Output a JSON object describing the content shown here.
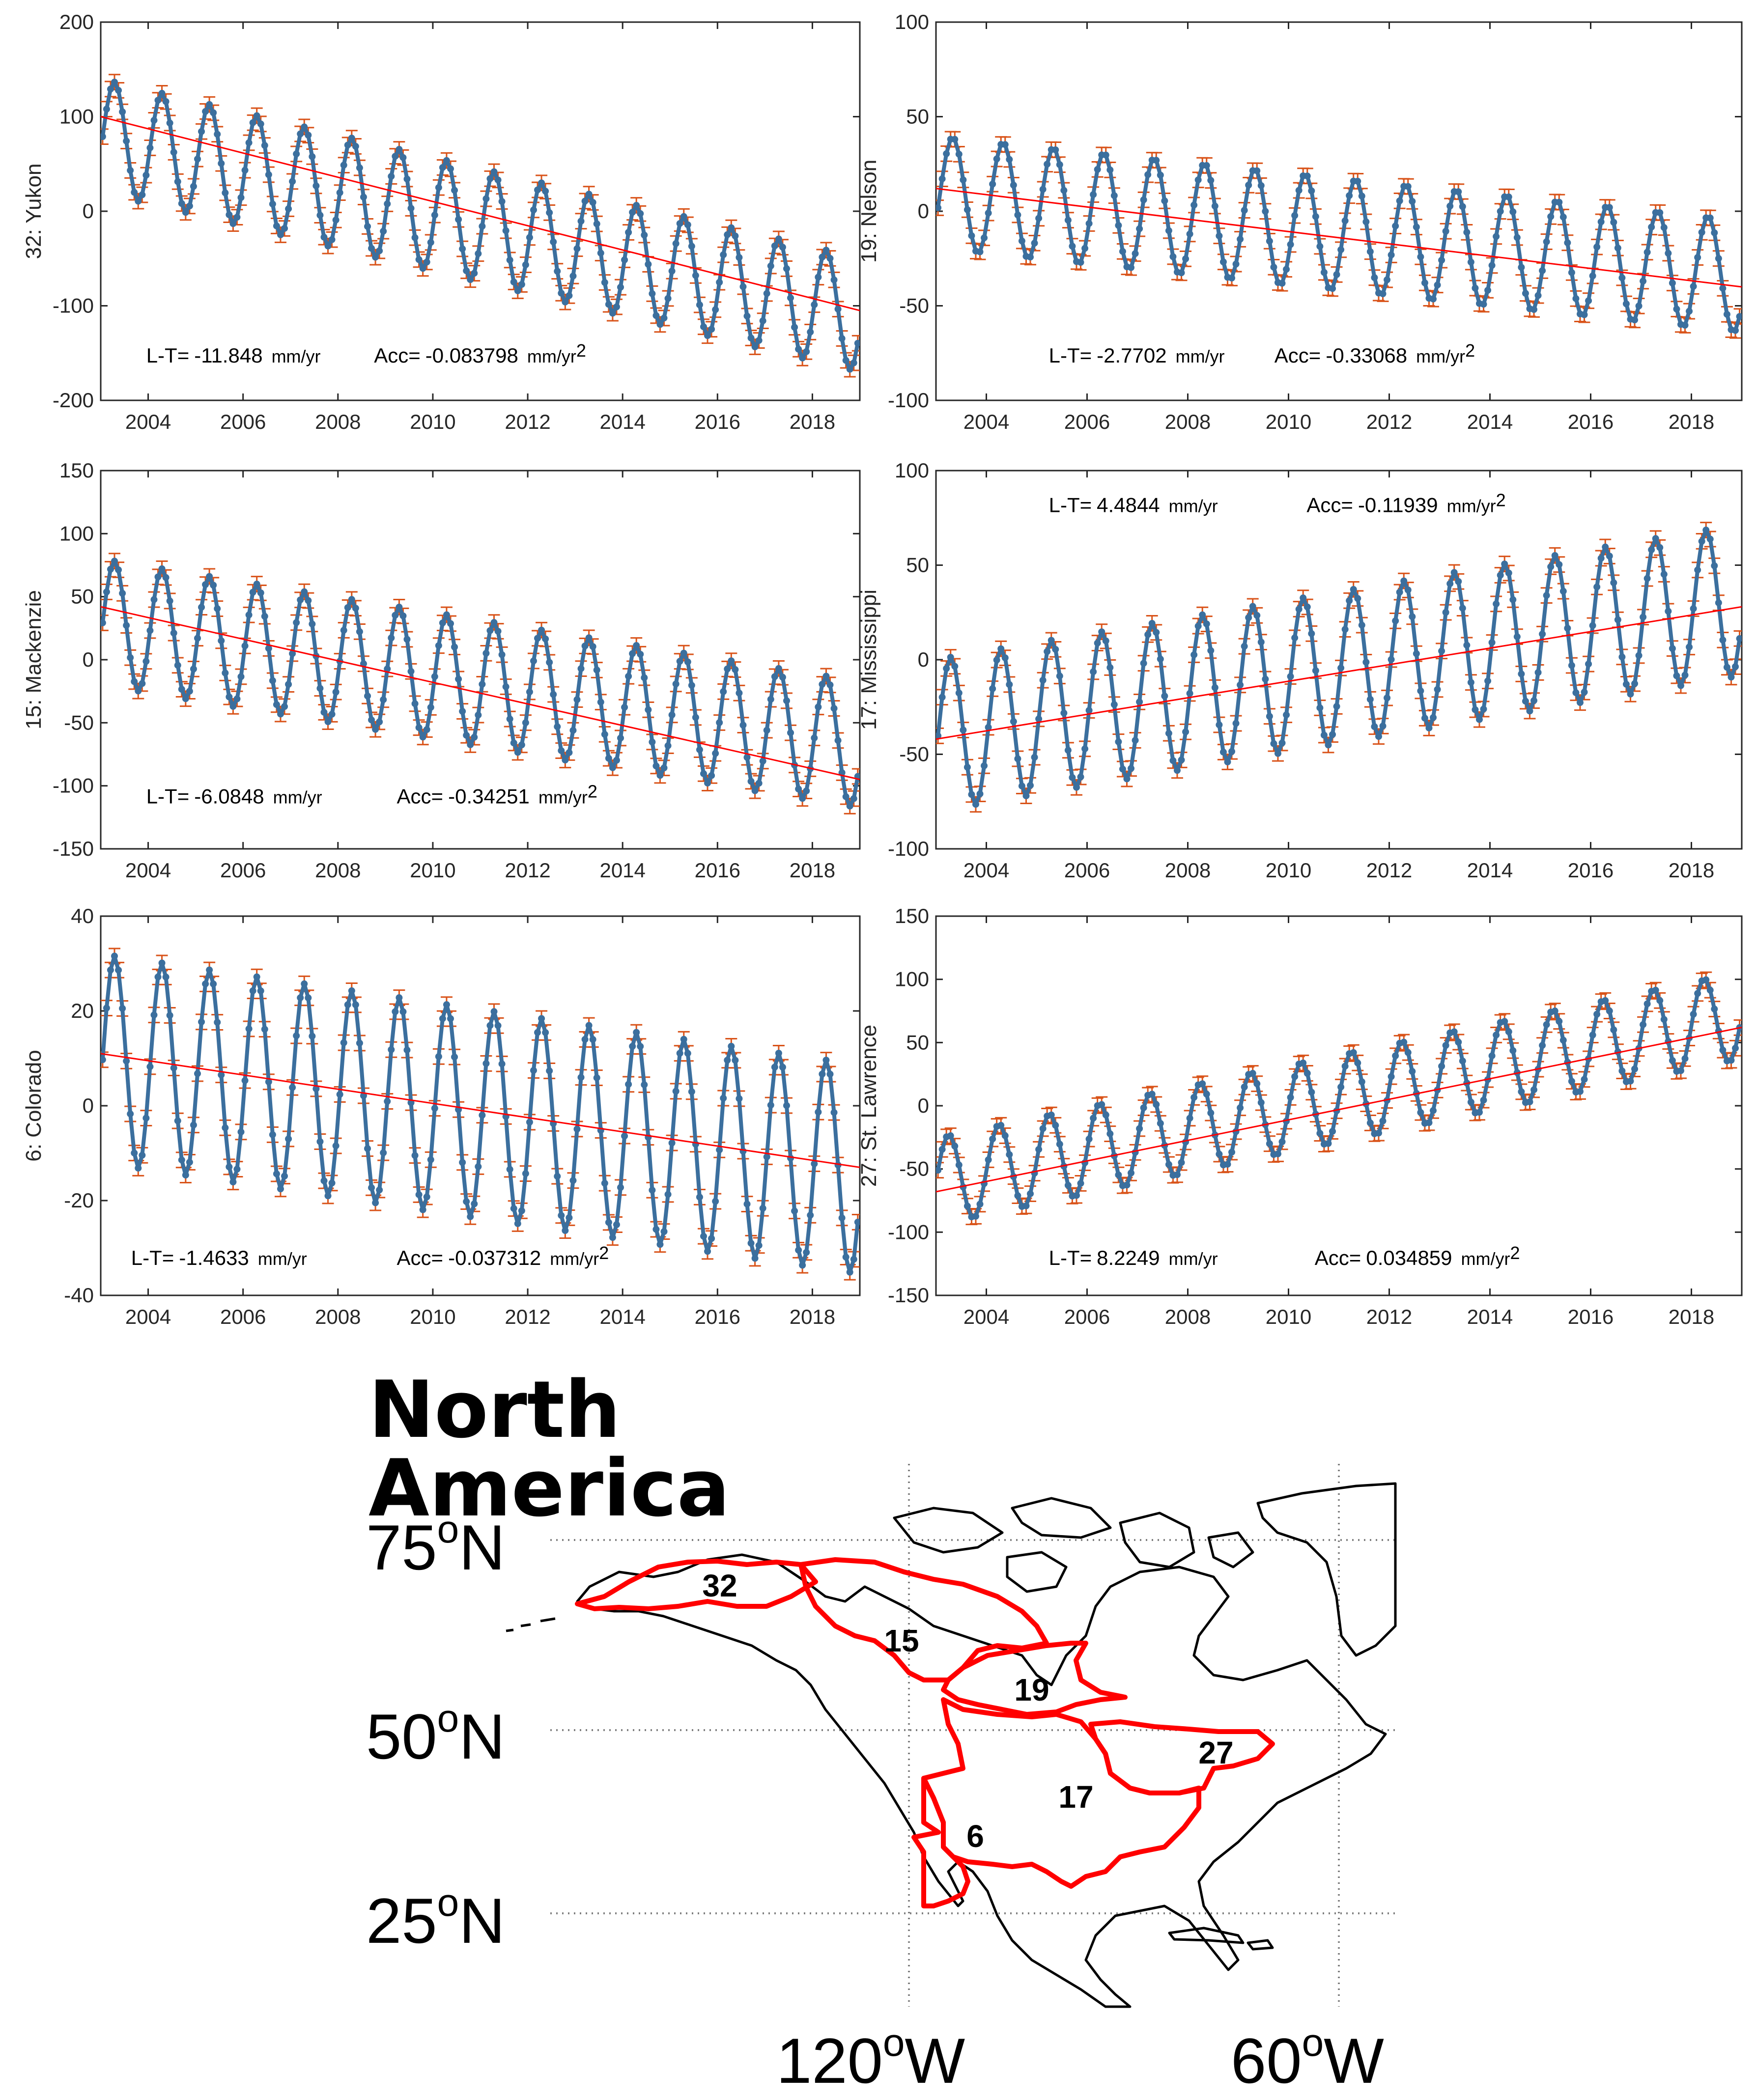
{
  "chart_data": [
    {
      "type": "line",
      "basin_id": "32",
      "ylabel": "32: Yukon",
      "ylim": [
        -200,
        200
      ],
      "yticks": [
        200,
        100,
        0,
        -100,
        -200
      ],
      "xlim": [
        2003,
        2019
      ],
      "xticks": [
        2004,
        2006,
        2008,
        2010,
        2012,
        2014,
        2016,
        2018
      ],
      "seasonal": {
        "mean": 80,
        "mean_slope": -11.848,
        "amplitude": 60,
        "peak_month": 3.5
      },
      "trend": {
        "start": [
          2003,
          100
        ],
        "end": [
          2019,
          -105
        ]
      },
      "lt_label": "L-T=",
      "lt_value": "-11.848",
      "lt_unit": "mm/yr",
      "acc_label": "Acc=",
      "acc_value": "-0.083798",
      "acc_unit": "mm/yr",
      "acc_exp": "2"
    },
    {
      "type": "line",
      "basin_id": "19",
      "ylabel": "19: Nelson",
      "ylim": [
        -100,
        100
      ],
      "yticks": [
        100,
        50,
        0,
        -50,
        -100
      ],
      "xlim": [
        2003,
        2019
      ],
      "xticks": [
        2004,
        2006,
        2008,
        2010,
        2012,
        2014,
        2016,
        2018
      ],
      "seasonal": {
        "mean": 10,
        "mean_slope": -2.7702,
        "amplitude": 30,
        "peak_month": 4
      },
      "trend": {
        "start": [
          2003,
          12
        ],
        "end": [
          2019,
          -40
        ]
      },
      "lt_label": "L-T=",
      "lt_value": "-2.7702",
      "lt_unit": "mm/yr",
      "acc_label": "Acc=",
      "acc_value": "-0.33068",
      "acc_unit": "mm/yr",
      "acc_exp": "2"
    },
    {
      "type": "line",
      "basin_id": "15",
      "ylabel": "15: Mackenzie",
      "ylim": [
        -150,
        150
      ],
      "yticks": [
        150,
        100,
        50,
        0,
        -50,
        -100,
        -150
      ],
      "xlim": [
        2003,
        2019
      ],
      "xticks": [
        2004,
        2006,
        2008,
        2010,
        2012,
        2014,
        2016,
        2018
      ],
      "seasonal": {
        "mean": 30,
        "mean_slope": -6.0848,
        "amplitude": 50,
        "peak_month": 3.5
      },
      "trend": {
        "start": [
          2003,
          42
        ],
        "end": [
          2019,
          -95
        ]
      },
      "lt_label": "L-T=",
      "lt_value": "-6.0848",
      "lt_unit": "mm/yr",
      "acc_label": "Acc=",
      "acc_value": "-0.34251",
      "acc_unit": "mm/yr",
      "acc_exp": "2"
    },
    {
      "type": "line",
      "basin_id": "17",
      "ylabel": "17: Mississippi",
      "ylim": [
        -100,
        100
      ],
      "yticks": [
        100,
        50,
        0,
        -50,
        -100
      ],
      "xlim": [
        2003,
        2019
      ],
      "xticks": [
        2004,
        2006,
        2008,
        2010,
        2012,
        2014,
        2016,
        2018
      ],
      "seasonal": {
        "mean": -40,
        "mean_slope": 4.4844,
        "amplitude": 40,
        "peak_month": 3.5
      },
      "trend": {
        "start": [
          2003,
          -42
        ],
        "end": [
          2019,
          28
        ]
      },
      "lt_label": "L-T=",
      "lt_value": "4.4844",
      "lt_unit": "mm/yr",
      "acc_label": "Acc=",
      "acc_value": "-0.11939",
      "acc_unit": "mm/yr",
      "acc_exp": "2"
    },
    {
      "type": "line",
      "basin_id": "6",
      "ylabel": "6: Colorado",
      "ylim": [
        -40,
        40
      ],
      "yticks": [
        40,
        20,
        0,
        -20,
        -40
      ],
      "xlim": [
        2003,
        2019
      ],
      "xticks": [
        2004,
        2006,
        2008,
        2010,
        2012,
        2014,
        2016,
        2018
      ],
      "seasonal": {
        "mean": 10,
        "mean_slope": -1.4633,
        "amplitude": 22,
        "peak_month": 3.5
      },
      "trend": {
        "start": [
          2003,
          11
        ],
        "end": [
          2019,
          -13
        ]
      },
      "lt_label": "L-T=",
      "lt_value": "-1.4633",
      "lt_unit": "mm/yr",
      "acc_label": "Acc=",
      "acc_value": "-0.037312",
      "acc_unit": "mm/yr",
      "acc_exp": "2"
    },
    {
      "type": "line",
      "basin_id": "27",
      "ylabel": "27: St. Lawrence",
      "ylim": [
        -150,
        150
      ],
      "yticks": [
        150,
        100,
        50,
        0,
        -50,
        -100,
        -150
      ],
      "xlim": [
        2003,
        2019
      ],
      "xticks": [
        2004,
        2006,
        2008,
        2010,
        2012,
        2014,
        2016,
        2018
      ],
      "seasonal": {
        "mean": -60,
        "mean_slope": 8.2249,
        "amplitude": 35,
        "peak_month": 3
      },
      "trend": {
        "start": [
          2003,
          -68
        ],
        "end": [
          2019,
          62
        ]
      },
      "lt_label": "L-T=",
      "lt_value": "8.2249",
      "lt_unit": "mm/yr",
      "acc_label": "Acc=",
      "acc_value": "0.034859",
      "acc_unit": "mm/yr",
      "acc_exp": "2"
    }
  ],
  "map": {
    "title": "North America",
    "lat_labels": [
      {
        "deg": "75",
        "suffix": "N"
      },
      {
        "deg": "50",
        "suffix": "N"
      },
      {
        "deg": "25",
        "suffix": "N"
      }
    ],
    "lon_labels": [
      {
        "deg": "120",
        "suffix": "W"
      },
      {
        "deg": "60",
        "suffix": "W"
      }
    ],
    "degree_symbol": "o",
    "basin_labels": [
      "32",
      "15",
      "19",
      "27",
      "17",
      "6"
    ],
    "colors": {
      "basin_outline": "#ff0000",
      "coast": "#000000",
      "grid": "#808080"
    }
  },
  "colors": {
    "series": "#3b6f9e",
    "error_bars": "#d95319",
    "trend": "#ff0000",
    "axis": "#262626"
  }
}
